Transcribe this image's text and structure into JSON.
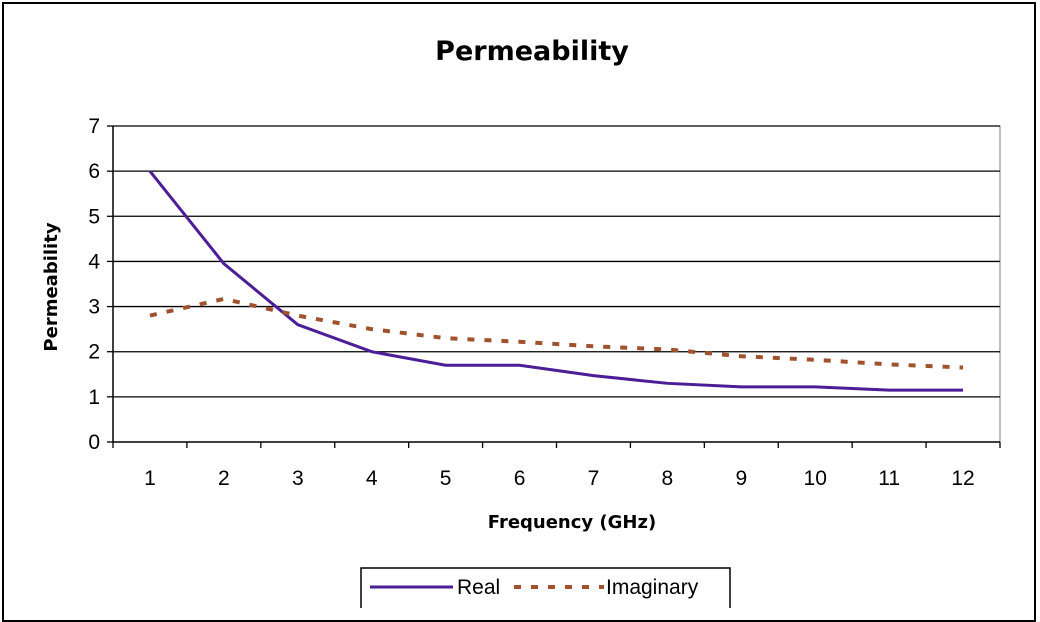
{
  "chart_data": {
    "type": "line",
    "title": "Permeability",
    "xlabel": "Frequency (GHz)",
    "ylabel": "Permeability",
    "categories": [
      "1",
      "2",
      "3",
      "4",
      "5",
      "6",
      "7",
      "8",
      "9",
      "10",
      "11",
      "12"
    ],
    "ylim": [
      0,
      7
    ],
    "yticks": [
      0,
      1,
      2,
      3,
      4,
      5,
      6,
      7
    ],
    "grid": true,
    "legend_position": "bottom",
    "series": [
      {
        "name": "Real",
        "color": "#4b1d96",
        "style": "solid",
        "values": [
          6.0,
          3.95,
          2.6,
          2.0,
          1.7,
          1.7,
          1.47,
          1.3,
          1.22,
          1.22,
          1.15,
          1.15
        ]
      },
      {
        "name": "Imaginary",
        "color": "#a0522d",
        "style": "dashed",
        "values": [
          2.8,
          3.17,
          2.8,
          2.5,
          2.3,
          2.22,
          2.12,
          2.05,
          1.9,
          1.82,
          1.72,
          1.65
        ]
      }
    ]
  }
}
